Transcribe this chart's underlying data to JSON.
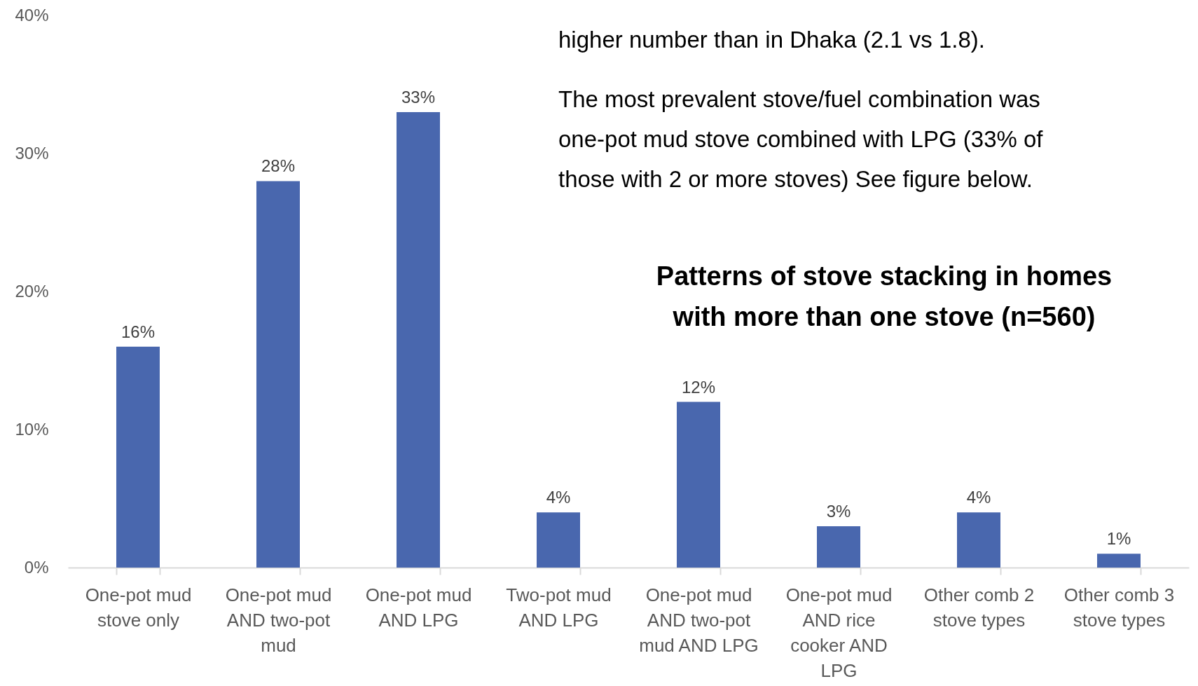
{
  "chart_data": {
    "type": "bar",
    "title": "Patterns of stove stacking in homes with more than one stove (n=560)",
    "categories": [
      "One-pot mud stove only",
      "One-pot mud AND two-pot mud",
      "One-pot mud AND LPG",
      "Two-pot mud AND LPG",
      "One-pot mud AND two-pot mud AND LPG",
      "One-pot mud AND rice cooker AND LPG",
      "Other comb 2 stove types",
      "Other comb 3 stove types"
    ],
    "values": [
      16,
      28,
      33,
      4,
      12,
      3,
      4,
      1
    ],
    "value_labels": [
      "16%",
      "28%",
      "33%",
      "4%",
      "12%",
      "3%",
      "4%",
      "1%"
    ],
    "color": "#4967ae",
    "ylim": [
      0,
      40
    ],
    "yticks": [
      {
        "value": 0,
        "label": "0%"
      },
      {
        "value": 10,
        "label": "10%"
      },
      {
        "value": 20,
        "label": "20%"
      },
      {
        "value": 30,
        "label": "30%"
      },
      {
        "value": 40,
        "label": "40%"
      }
    ],
    "grid": false,
    "annotations": [
      "higher number than in Dhaka (2.1 vs 1.8).",
      "The most prevalent stove/fuel combination was one-pot mud stove combined with LPG (33% of those with 2 or more stoves) See figure below."
    ]
  }
}
